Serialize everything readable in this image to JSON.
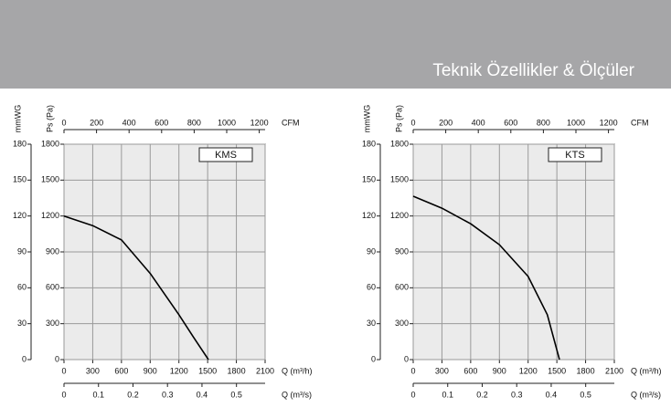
{
  "header": {
    "title": "Teknik Özellikler & Ölçüler"
  },
  "chart_data": [
    {
      "type": "line",
      "title": "KMS",
      "x": [
        0,
        300,
        600,
        900,
        1200,
        1350,
        1508
      ],
      "series": [
        {
          "color": "#000000",
          "values": [
            1200,
            1120,
            1000,
            720,
            375,
            190,
            0
          ]
        }
      ],
      "xlabel": "Q (m³/h)",
      "xlim": [
        0,
        2100
      ],
      "xticks": [
        0,
        300,
        600,
        900,
        1200,
        1500,
        1800,
        2100
      ],
      "ylabel": "Ps (Pa)",
      "ylim": [
        0,
        1800
      ],
      "yticks": [
        0,
        300,
        600,
        900,
        1200,
        1500,
        1800
      ],
      "y2label": "mmWG",
      "y2lim": [
        0,
        180
      ],
      "y2ticks": [
        0,
        30,
        60,
        90,
        120,
        150,
        180
      ],
      "x2label": "CFM",
      "x2lim": [
        0,
        1236
      ],
      "x2ticks": [
        0,
        200,
        400,
        600,
        800,
        1000,
        1200
      ],
      "x3label": "Q (m³/s)",
      "x3lim": [
        0,
        0.583
      ],
      "x3ticks": [
        0,
        0.1,
        0.2,
        0.3,
        0.4,
        0.5
      ],
      "grid": true
    },
    {
      "type": "line",
      "title": "KTS",
      "x": [
        0,
        300,
        600,
        900,
        1200,
        1400,
        1527
      ],
      "series": [
        {
          "color": "#000000",
          "values": [
            1365,
            1265,
            1135,
            960,
            695,
            375,
            0
          ]
        }
      ],
      "xlabel": "Q (m³/h)",
      "xlim": [
        0,
        2100
      ],
      "xticks": [
        0,
        300,
        600,
        900,
        1200,
        1500,
        1800,
        2100
      ],
      "ylabel": "Ps (Pa)",
      "ylim": [
        0,
        1800
      ],
      "yticks": [
        0,
        300,
        600,
        900,
        1200,
        1500,
        1800
      ],
      "y2label": "mmWG",
      "y2lim": [
        0,
        180
      ],
      "y2ticks": [
        0,
        30,
        60,
        90,
        120,
        150,
        180
      ],
      "x2label": "CFM",
      "x2lim": [
        0,
        1236
      ],
      "x2ticks": [
        0,
        200,
        400,
        600,
        800,
        1000,
        1200
      ],
      "x3label": "Q (m³/s)",
      "x3lim": [
        0,
        0.583
      ],
      "x3ticks": [
        0,
        0.1,
        0.2,
        0.3,
        0.4,
        0.5
      ],
      "grid": true
    }
  ]
}
